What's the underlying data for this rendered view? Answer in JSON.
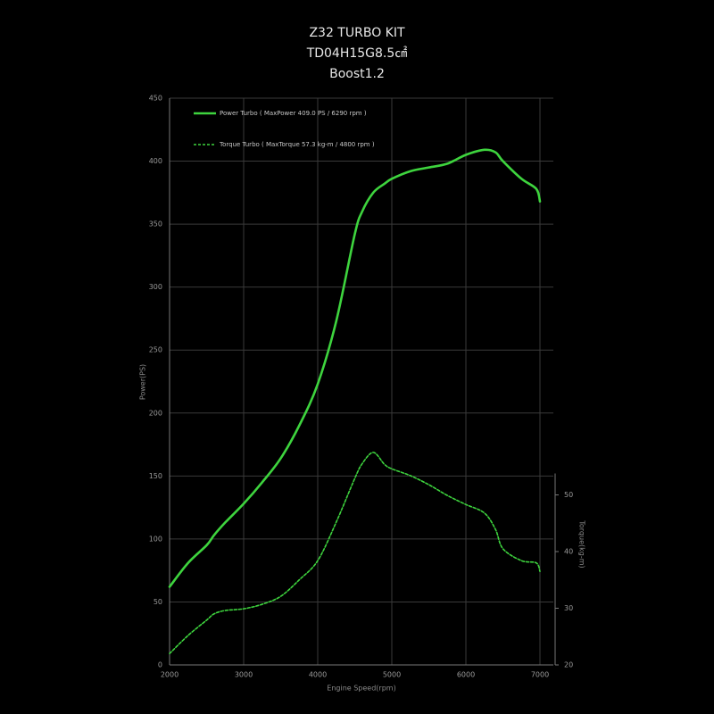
{
  "chart_data": {
    "type": "line",
    "title": [
      "Z32 TURBO KIT",
      "TD04H15G8.5㎠",
      "Boost1.2"
    ],
    "x_label": "Engine Speed(rpm)",
    "y_label": "Power(PS)",
    "y2_label": "Torque(kg-m)",
    "x": [
      2000,
      2250,
      2500,
      2600,
      2750,
      3000,
      3250,
      3500,
      3750,
      4000,
      4250,
      4500,
      4600,
      4750,
      4900,
      5000,
      5250,
      5500,
      5750,
      6000,
      6250,
      6400,
      6500,
      6750,
      6950,
      7000
    ],
    "series": [
      {
        "name": "Power Turbo ( MaxPower 409.0 PS / 6290 rpm )",
        "color": "#3ed43e",
        "line_style": "solid",
        "values": [
          62,
          81,
          95,
          103,
          113,
          128,
          145,
          164,
          190,
          223,
          273,
          342,
          360,
          375,
          382,
          386,
          392,
          395,
          398,
          405,
          409,
          407,
          400,
          386,
          378,
          368
        ]
      },
      {
        "name": "Torque Turbo ( MaxTorque 57.3 kg-m / 4800 rpm )",
        "color": "#3ed43e",
        "line_style": "dashed",
        "axis": "y2",
        "values": [
          22.0,
          25.2,
          27.9,
          29.0,
          29.6,
          29.9,
          30.7,
          32.1,
          35.0,
          38.4,
          45.2,
          52.9,
          55.5,
          57.5,
          55.4,
          54.6,
          53.4,
          51.8,
          49.9,
          48.3,
          46.8,
          43.9,
          40.5,
          38.4,
          38.0,
          36.5
        ]
      }
    ],
    "xlim": [
      2000,
      7000
    ],
    "xticks": [
      2000,
      3000,
      4000,
      5000,
      6000,
      7000
    ],
    "ylim": [
      0,
      450
    ],
    "yticks": [
      0,
      50,
      100,
      150,
      200,
      250,
      300,
      350,
      400,
      450
    ],
    "y2lim": [
      20,
      120
    ],
    "y2ticks": [
      20,
      30,
      40,
      50
    ],
    "grid": true,
    "legend": "upper left"
  }
}
